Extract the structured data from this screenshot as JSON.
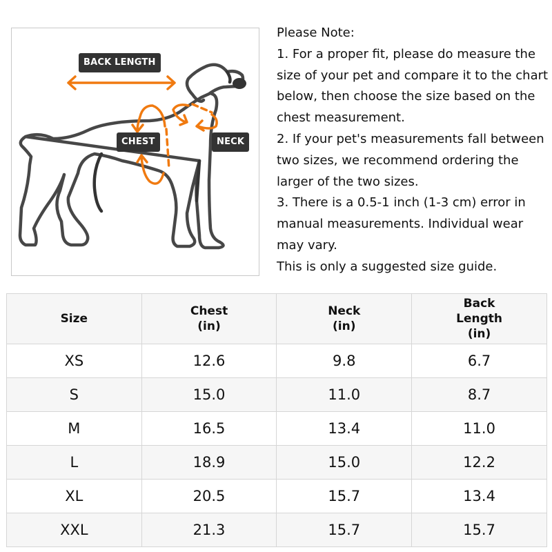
{
  "figure": {
    "labels": {
      "back_length": "BACK LENGTH",
      "chest": "CHEST",
      "neck": "NECK"
    },
    "colors": {
      "arrow": "#f07a10",
      "outline": "#333333",
      "tag": "#333333"
    }
  },
  "notes": [
    "Please Note:",
    "1. For a proper fit, please do measure the size of your pet and compare it to the chart below, then choose the size based on the chest measurement.",
    "2. If your pet's measurements fall between two sizes, we recommend ordering the larger of the two sizes.",
    "3. There is a 0.5-1 inch (1-3 cm) error in manual measurements. Individual wear may vary.",
    "This is only a suggested size guide."
  ],
  "table": {
    "headers": [
      [
        "Size"
      ],
      [
        "Chest",
        "(in)"
      ],
      [
        "Neck",
        "(in)"
      ],
      [
        "Back",
        "Length",
        "(in)"
      ]
    ],
    "rows": [
      [
        "XS",
        "12.6",
        "9.8",
        "6.7"
      ],
      [
        "S",
        "15.0",
        "11.0",
        "8.7"
      ],
      [
        "M",
        "16.5",
        "13.4",
        "11.0"
      ],
      [
        "L",
        "18.9",
        "15.0",
        "12.2"
      ],
      [
        "XL",
        "20.5",
        "15.7",
        "13.4"
      ],
      [
        "XXL",
        "21.3",
        "15.7",
        "15.7"
      ]
    ]
  }
}
